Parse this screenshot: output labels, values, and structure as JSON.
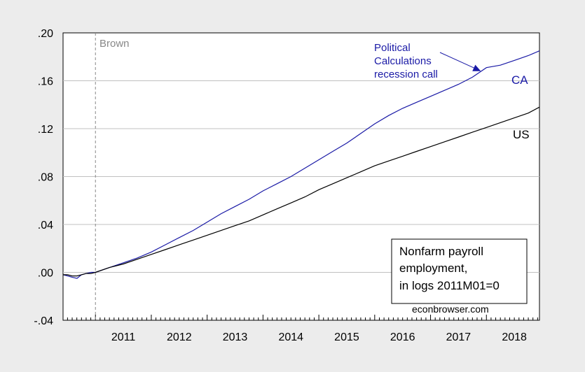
{
  "chart_data": {
    "type": "line",
    "title": "",
    "xlabel": "",
    "ylabel": "",
    "xlim": [
      2010.42,
      2018.95
    ],
    "ylim": [
      -0.04,
      0.2
    ],
    "y_ticks": [
      -0.04,
      0.0,
      0.04,
      0.08,
      0.12,
      0.16,
      0.2
    ],
    "y_tick_labels": [
      "-.04",
      ".00",
      ".04",
      ".08",
      ".12",
      ".16",
      ".20"
    ],
    "x_ticks": [
      2011,
      2012,
      2013,
      2014,
      2015,
      2016,
      2017,
      2018
    ],
    "x_tick_labels": [
      "2011",
      "2012",
      "2013",
      "2014",
      "2015",
      "2016",
      "2017",
      "2018"
    ],
    "grid": "horizontal",
    "vline": {
      "x": 2011.0,
      "label": "Brown",
      "color": "#888888"
    },
    "series": [
      {
        "name": "CA",
        "color": "#1a1aa6",
        "x": [
          2010.42,
          2010.5,
          2010.58,
          2010.67,
          2010.75,
          2010.83,
          2010.92,
          2011.0,
          2011.25,
          2011.5,
          2011.75,
          2012.0,
          2012.25,
          2012.5,
          2012.75,
          2013.0,
          2013.25,
          2013.5,
          2013.75,
          2014.0,
          2014.25,
          2014.5,
          2014.75,
          2015.0,
          2015.25,
          2015.5,
          2015.75,
          2016.0,
          2016.25,
          2016.5,
          2016.75,
          2017.0,
          2017.25,
          2017.5,
          2017.75,
          2018.0,
          2018.25,
          2018.5,
          2018.75,
          2018.95
        ],
        "values": [
          -0.002,
          -0.003,
          -0.004,
          -0.005,
          -0.002,
          -0.001,
          0.0,
          0.0,
          0.004,
          0.008,
          0.012,
          0.017,
          0.023,
          0.029,
          0.035,
          0.042,
          0.049,
          0.055,
          0.061,
          0.068,
          0.074,
          0.08,
          0.087,
          0.094,
          0.101,
          0.108,
          0.116,
          0.124,
          0.131,
          0.137,
          0.142,
          0.147,
          0.152,
          0.157,
          0.163,
          0.171,
          0.173,
          0.177,
          0.181,
          0.185
        ]
      },
      {
        "name": "US",
        "color": "#000000",
        "x": [
          2010.42,
          2010.5,
          2010.58,
          2010.67,
          2010.75,
          2010.83,
          2010.92,
          2011.0,
          2011.25,
          2011.5,
          2011.75,
          2012.0,
          2012.25,
          2012.5,
          2012.75,
          2013.0,
          2013.25,
          2013.5,
          2013.75,
          2014.0,
          2014.25,
          2014.5,
          2014.75,
          2015.0,
          2015.25,
          2015.5,
          2015.75,
          2016.0,
          2016.25,
          2016.5,
          2016.75,
          2017.0,
          2017.25,
          2017.5,
          2017.75,
          2018.0,
          2018.25,
          2018.5,
          2018.75,
          2018.95
        ],
        "values": [
          -0.002,
          -0.002,
          -0.003,
          -0.003,
          -0.002,
          -0.001,
          -0.001,
          0.0,
          0.004,
          0.007,
          0.011,
          0.015,
          0.019,
          0.023,
          0.027,
          0.031,
          0.035,
          0.039,
          0.043,
          0.048,
          0.053,
          0.058,
          0.063,
          0.069,
          0.074,
          0.079,
          0.084,
          0.089,
          0.093,
          0.097,
          0.101,
          0.105,
          0.109,
          0.113,
          0.117,
          0.121,
          0.125,
          0.129,
          0.133,
          0.138
        ]
      }
    ],
    "annotations": {
      "ca_label": "CA",
      "us_label": "US",
      "political_lines": [
        "Political",
        "Calculations",
        "recession call"
      ],
      "political_arrow_x": 2017.9,
      "political_arrow_y": 0.168,
      "legend_lines": [
        "Nonfarm payroll",
        "employment,",
        "in logs 2011M01=0"
      ],
      "legend_placement": "bottom-right",
      "source": "econbrowser.com"
    },
    "colors": {
      "background": "#ececec",
      "plot": "#ffffff",
      "grid": "#c0c0c0",
      "annotation": "#1a1aa6"
    }
  }
}
